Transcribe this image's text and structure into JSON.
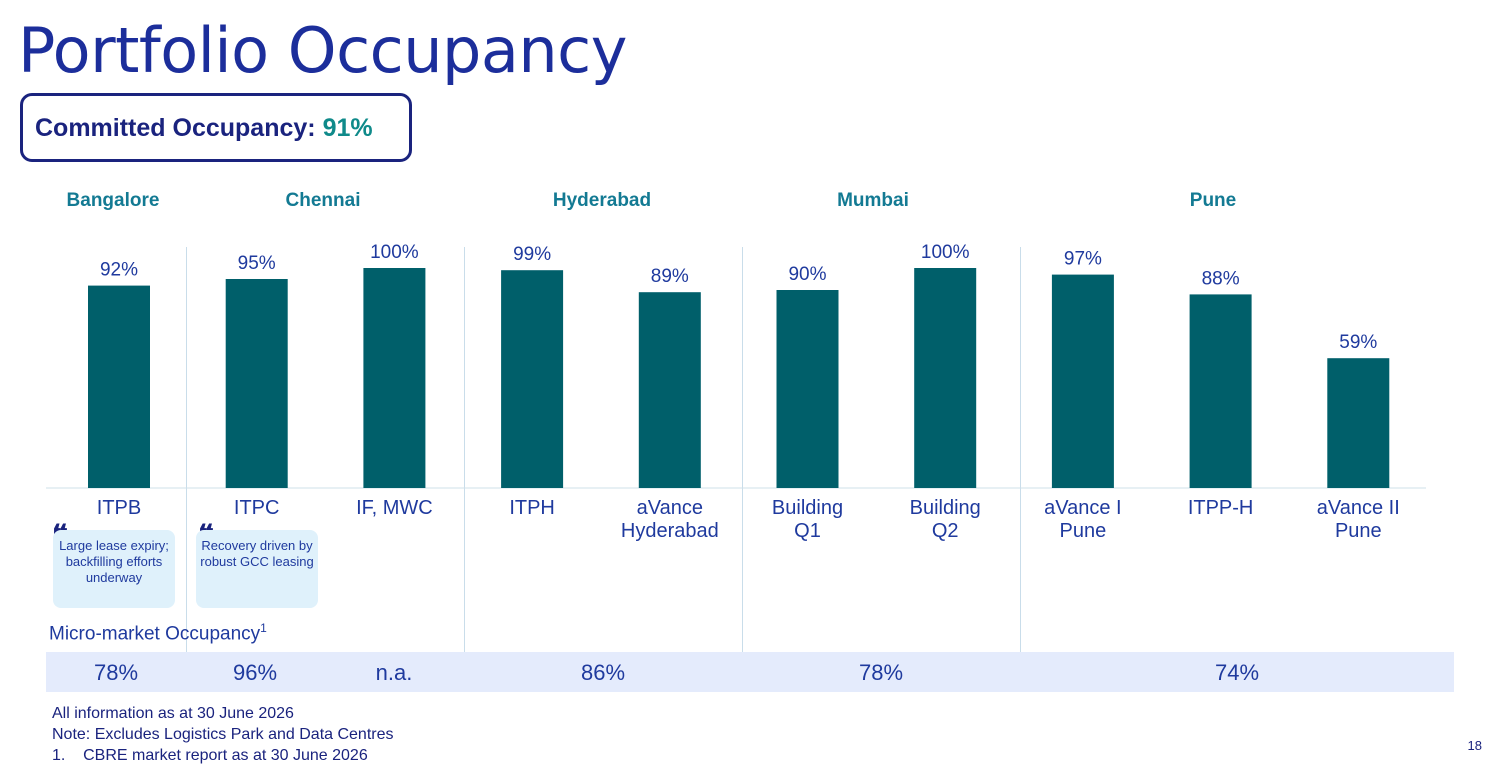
{
  "title": "Portfolio Occupancy",
  "committed": {
    "label": "Committed Occupancy:",
    "value": "91%"
  },
  "cities": [
    "Bangalore",
    "Chennai",
    "Hyderabad",
    "Mumbai",
    "Pune"
  ],
  "notes": [
    {
      "text": "Large lease expiry; backfilling efforts underway"
    },
    {
      "text": "Recovery driven by robust GCC leasing"
    }
  ],
  "quote_glyph": "❝",
  "micro_market": {
    "label": "Micro-market Occupancy",
    "sup": "1",
    "values": [
      "78%",
      "96%",
      "n.a.",
      "86%",
      "78%",
      "74%"
    ]
  },
  "footnotes": [
    "All information as at 30 June 2026",
    "Note: Excludes Logistics Park and Data Centres",
    "1.    CBRE market report as at 30 June 2026"
  ],
  "page_number": "18",
  "colors": {
    "bar": "#005f6a",
    "title": "#1c2e9b",
    "city": "#137a93",
    "band": "#e4ebfc"
  },
  "chart_data": {
    "type": "bar",
    "categories": [
      "ITPB",
      "ITPC",
      "IF, MWC",
      "ITPH",
      "aVance Hyderabad",
      "Building Q1",
      "Building Q2",
      "aVance I Pune",
      "ITPP-H",
      "aVance II Pune"
    ],
    "category_lines": [
      [
        "ITPB"
      ],
      [
        "ITPC"
      ],
      [
        "IF, MWC"
      ],
      [
        "ITPH"
      ],
      [
        "aVance",
        "Hyderabad"
      ],
      [
        "Building",
        "Q1"
      ],
      [
        "Building",
        "Q2"
      ],
      [
        "aVance I",
        "Pune"
      ],
      [
        "ITPP-H"
      ],
      [
        "aVance II",
        "Pune"
      ]
    ],
    "values": [
      92,
      95,
      100,
      99,
      89,
      90,
      100,
      97,
      88,
      59
    ],
    "labels": [
      "92%",
      "95%",
      "100%",
      "99%",
      "89%",
      "90%",
      "100%",
      "97%",
      "88%",
      "59%"
    ],
    "ylim": [
      0,
      100
    ],
    "unit": "%"
  }
}
